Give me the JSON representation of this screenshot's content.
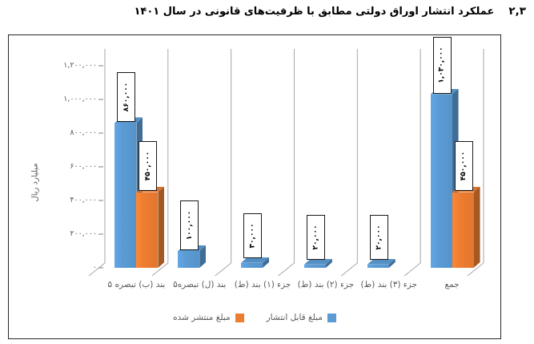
{
  "title": {
    "number": "۲,۳",
    "text": "عملکرد انتشار اوراق دولتی مطابق با ظرفیت‌های قانونی در سال ۱۴۰۱"
  },
  "chart_data": {
    "type": "bar",
    "style": "3d-clustered",
    "title": "",
    "ylabel": "میلیارد ریال",
    "ylim": [
      0,
      1200000
    ],
    "ytick_step": 200000,
    "yticks_display": [
      "۰",
      "۲۰۰,۰۰۰",
      "۴۰۰,۰۰۰",
      "۶۰۰,۰۰۰",
      "۸۰۰,۰۰۰",
      "۱,۰۰۰,۰۰۰",
      "۱,۲۰۰,۰۰۰"
    ],
    "categories": [
      "بند (ب) تبصره ۵",
      "بند (ل) تبصره۵",
      "جزء (۱) بند (ط)",
      "جزء (۲) بند (ط)",
      "جزء (۳) بند (ط)",
      "جمع"
    ],
    "series": [
      {
        "name": "مبلغ قابل انتشار",
        "color": "#5b9bd5",
        "values": [
          860000,
          100000,
          30000,
          20000,
          20000,
          1030000
        ],
        "labels": [
          "۸۶۰,۰۰۰",
          "۱۰۰,۰۰۰",
          "۳۰,۰۰۰",
          "۲۰,۰۰۰",
          "۲۰,۰۰۰",
          "۱,۰۳۰,۰۰۰"
        ]
      },
      {
        "name": "مبلغ منتشر شده",
        "color": "#ed7d31",
        "values": [
          450000,
          0,
          0,
          0,
          0,
          450000
        ],
        "labels": [
          "۴۵۰,۰۰۰",
          "",
          "",
          "",
          "",
          "۴۵۰,۰۰۰"
        ]
      }
    ],
    "grid": "category-separators-only",
    "legend_position": "bottom"
  }
}
